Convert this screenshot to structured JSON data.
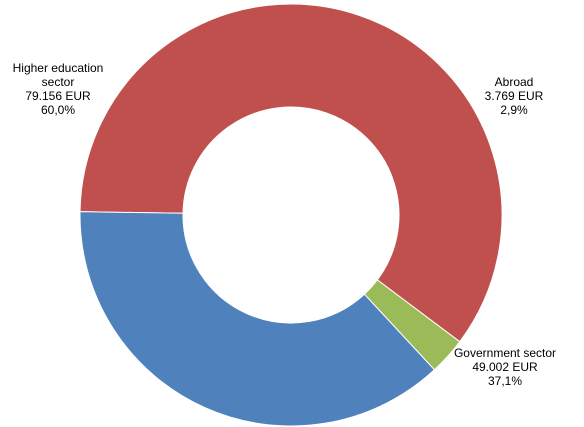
{
  "chart_data": {
    "type": "pie",
    "donut": true,
    "title": "",
    "slices": [
      {
        "name": "Higher education sector",
        "name_lines": [
          "Higher education",
          "sector"
        ],
        "value": 79156,
        "value_label": "79.156 EUR",
        "percent_label": "60,0%",
        "color": "#C0504D"
      },
      {
        "name": "Abroad",
        "name_lines": [
          "Abroad"
        ],
        "value": 3769,
        "value_label": "3.769 EUR",
        "percent_label": "2,9%",
        "color": "#9BBB59"
      },
      {
        "name": "Government sector",
        "name_lines": [
          "Government sector"
        ],
        "value": 49002,
        "value_label": "49.002 EUR",
        "percent_label": "37,1%",
        "color": "#4F81BD"
      }
    ]
  }
}
